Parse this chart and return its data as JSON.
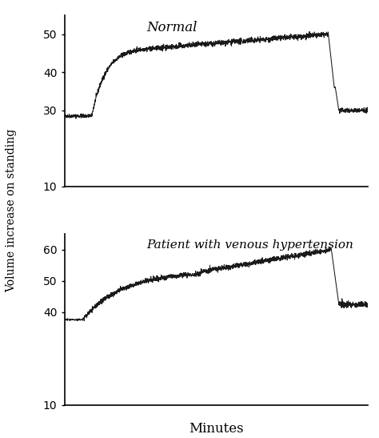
{
  "title_top": "Normal",
  "title_bottom": "Patient with venous hypertension",
  "ylabel": "Volume increase on standing",
  "xlabel": "Minutes",
  "top": {
    "ylim": [
      10,
      55
    ],
    "yticks": [
      10,
      30,
      40,
      50
    ],
    "noise_amplitude": 0.4
  },
  "bottom": {
    "ylim": [
      10,
      65
    ],
    "yticks": [
      10,
      40,
      50,
      60
    ],
    "noise_amplitude": 0.5
  },
  "line_color": "#1a1a1a",
  "background_color": "#ffffff",
  "fig_width": 4.74,
  "fig_height": 5.47,
  "dpi": 100
}
